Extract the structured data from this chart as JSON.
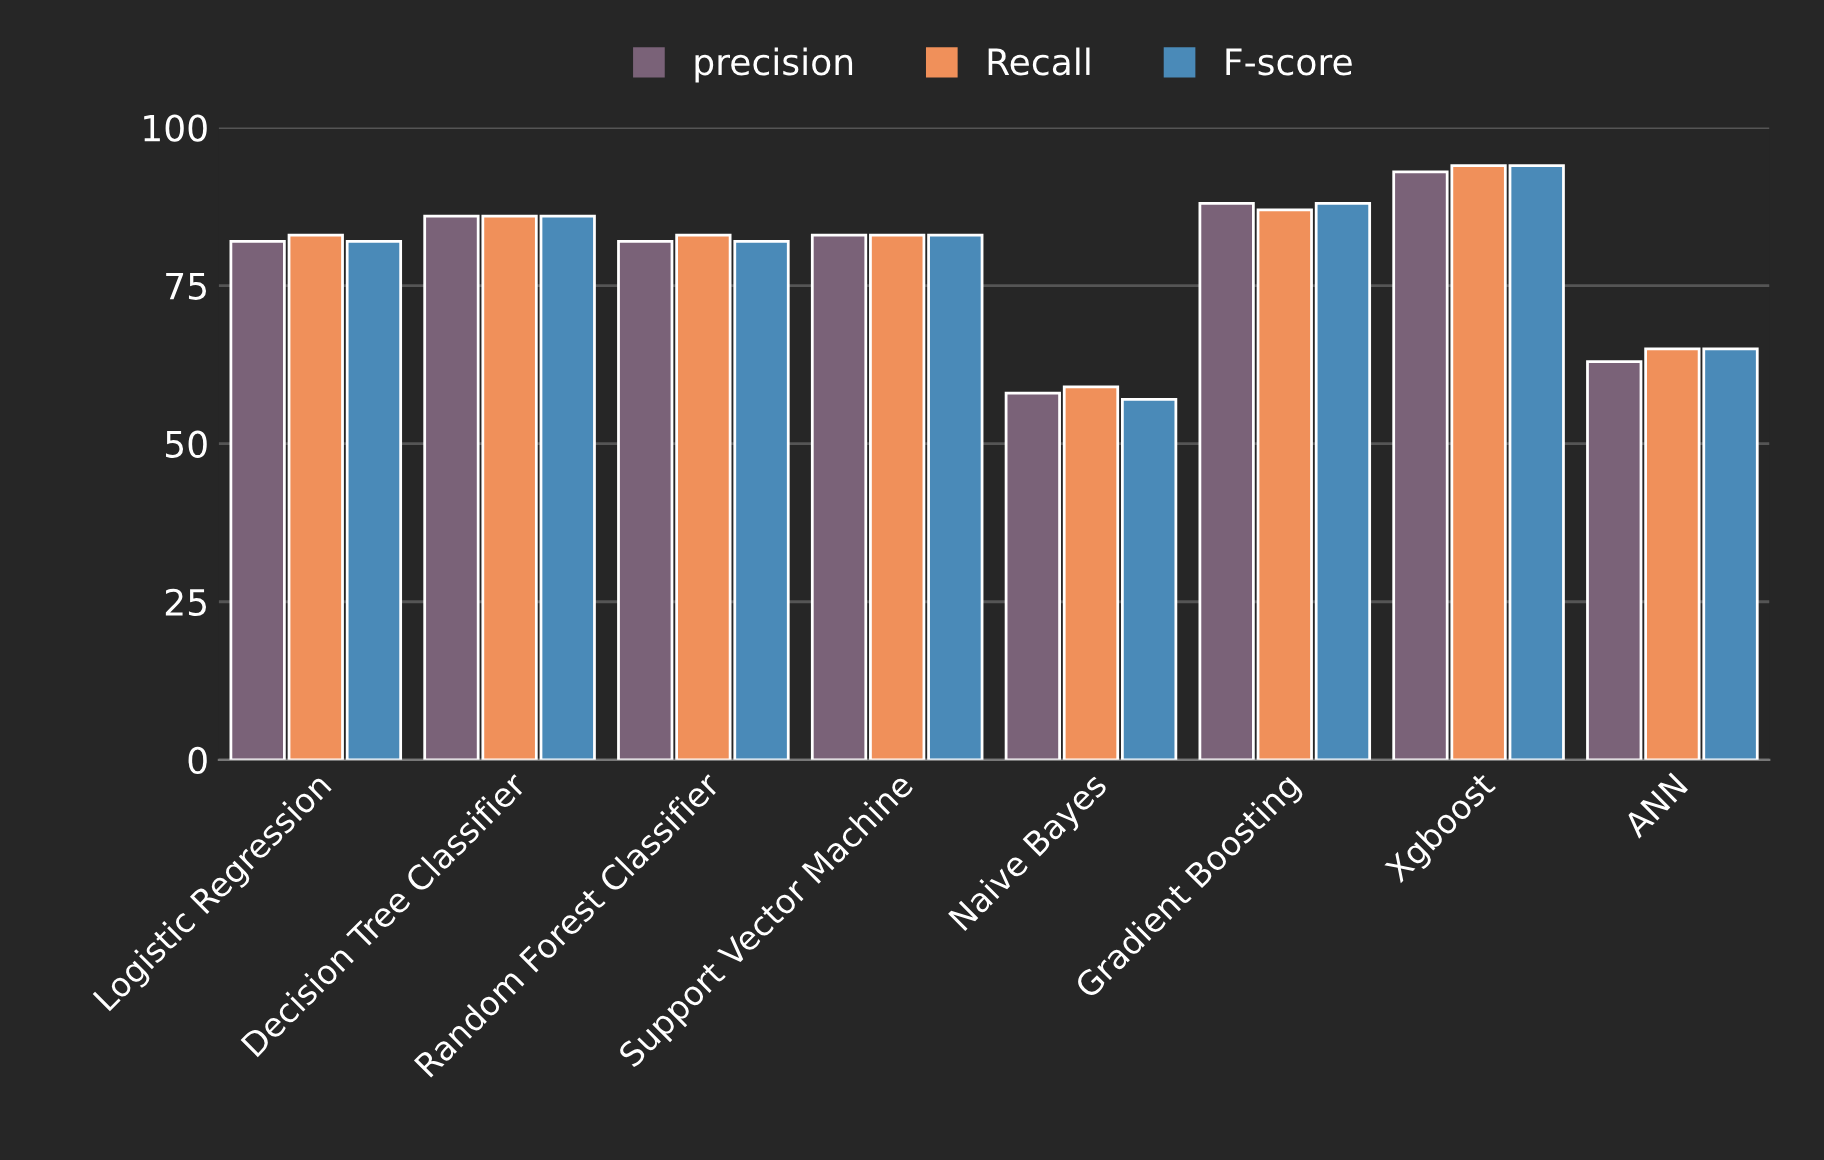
{
  "chart_data": {
    "type": "bar",
    "categories": [
      "Logistic Regression",
      "Decision Tree Classifier",
      "Random Forest Classifier",
      "Support Vector Machine",
      "Naive Bayes",
      "Gradient Boosting",
      "Xgboost",
      "ANN"
    ],
    "series": [
      {
        "name": "precision",
        "color": "#7a6278",
        "values": [
          82,
          86,
          82,
          83,
          58,
          88,
          93,
          63
        ]
      },
      {
        "name": "Recall",
        "color": "#f0905a",
        "values": [
          83,
          86,
          83,
          83,
          59,
          87,
          94,
          65
        ]
      },
      {
        "name": "F-score",
        "color": "#4a8ab8",
        "values": [
          82,
          86,
          82,
          83,
          57,
          88,
          94,
          65
        ]
      }
    ],
    "ylim": [
      0,
      100
    ],
    "yticks": [
      0,
      25,
      50,
      75,
      100
    ],
    "grid": "y",
    "legend": "top"
  }
}
